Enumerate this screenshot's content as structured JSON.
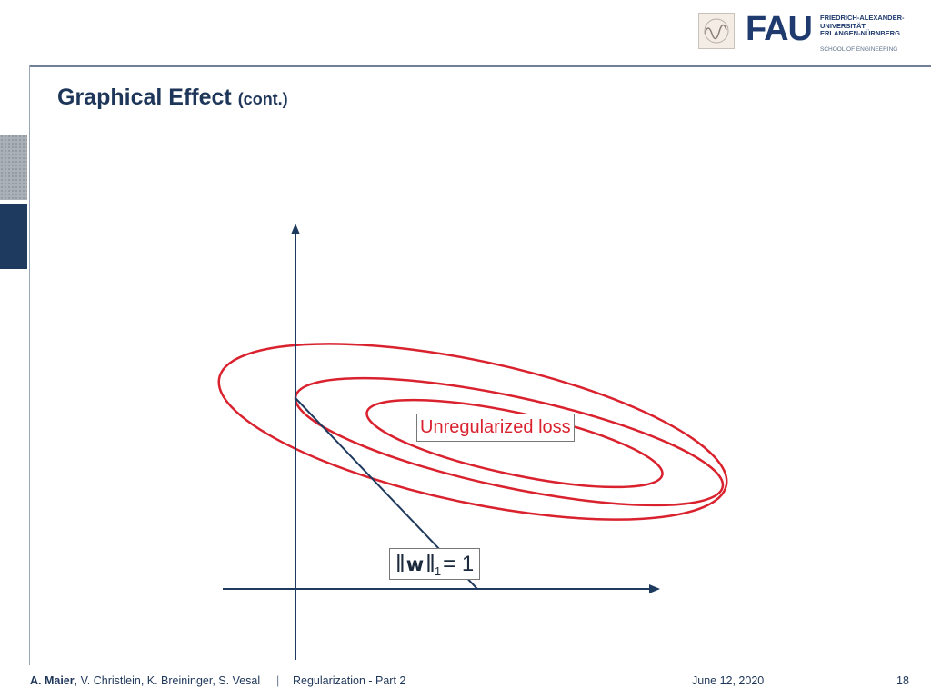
{
  "logo": {
    "wordmark": "FAU",
    "university_lines": [
      "FRIEDRICH-ALEXANDER-",
      "UNIVERSITÄT",
      "ERLANGEN-NÜRNBERG"
    ],
    "school": "SCHOOL OF ENGINEERING"
  },
  "slide": {
    "title": "Graphical Effect",
    "title_suffix": "(cont.)"
  },
  "diagram": {
    "loss_label": "Unregularized loss",
    "norm_label": {
      "open_bars": "‖",
      "symbol": "w",
      "close_bars": "‖",
      "subscript": "1",
      "equation": "= 1"
    },
    "colors": {
      "contours": "#d9222e",
      "axes": "#1f3a5f",
      "constraint_line": "#1f3a5f"
    }
  },
  "footer": {
    "lead_author": "A. Maier",
    "coauthors": ", V. Christlein, K. Breininger, S. Vesal",
    "separator": "|",
    "topic": "Regularization - Part 2",
    "date": "June 12, 2020",
    "page": "18"
  }
}
